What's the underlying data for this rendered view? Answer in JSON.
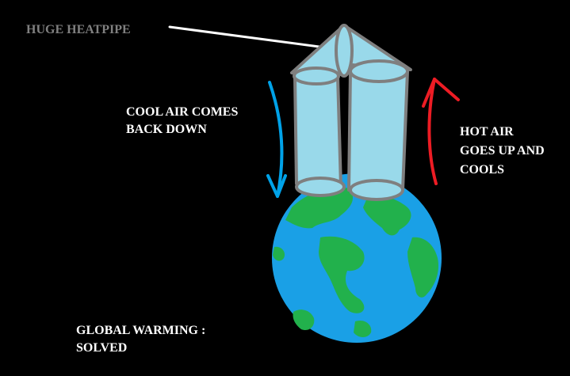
{
  "labels": {
    "heatpipe": "HUGE HEATPIPE",
    "cool_air": [
      "COOL AIR COMES",
      "BACK DOWN"
    ],
    "hot_air": [
      "HOT AIR",
      "GOES UP AND",
      "COOLS"
    ],
    "result": [
      "GLOBAL WARMING :",
      "SOLVED"
    ]
  },
  "colors": {
    "background": "#000000",
    "ocean": "#1aa0e6",
    "land": "#22b14c",
    "pipe_fill": "#99d9ea",
    "pipe_outline": "#7f7f7f",
    "cool_arrow": "#00a2e8",
    "hot_arrow": "#ed1c24",
    "pointer_line": "#ffffff",
    "heatpipe_label": "#808080",
    "text": "#ffffff"
  },
  "icons": {
    "globe": "earth-globe-icon",
    "heatpipe": "heatpipe-drawing",
    "cool_arrow": "arrow-down-icon",
    "hot_arrow": "arrow-up-icon"
  }
}
